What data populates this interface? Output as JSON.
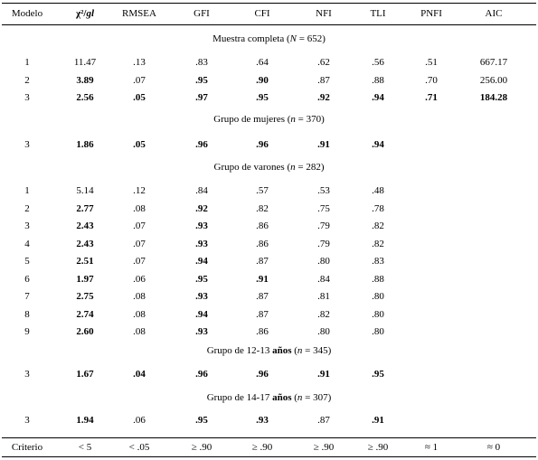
{
  "header": {
    "modelo": "Modelo",
    "chi": "χ²/",
    "gl": "gl",
    "rmsea": "RMSEA",
    "gfi": "GFI",
    "cfi": "CFI",
    "nfi": "NFI",
    "tli": "TLI",
    "pnfi": "PNFI",
    "aic": "AIC"
  },
  "sections": [
    {
      "title_pre": "Muestra completa (",
      "title_var": "N",
      "title_val": " = 652)",
      "title_bold": "",
      "rows": [
        {
          "cells": [
            "1",
            "11.47",
            ".13",
            ".83",
            ".64",
            ".62",
            ".56",
            ".51",
            "667.17"
          ],
          "bold": [
            false,
            false,
            false,
            false,
            false,
            false,
            false,
            false,
            false
          ]
        },
        {
          "cells": [
            "2",
            "3.89",
            ".07",
            ".95",
            ".90",
            ".87",
            ".88",
            ".70",
            "256.00"
          ],
          "bold": [
            false,
            true,
            false,
            true,
            true,
            false,
            false,
            false,
            false
          ]
        },
        {
          "cells": [
            "3",
            "2.56",
            ".05",
            ".97",
            ".95",
            ".92",
            ".94",
            ".71",
            "184.28"
          ],
          "bold": [
            false,
            true,
            true,
            true,
            true,
            true,
            true,
            true,
            true
          ]
        }
      ]
    },
    {
      "title_pre": "Grupo de mujeres (",
      "title_var": "n",
      "title_val": " = 370)",
      "title_bold": "",
      "rows": [
        {
          "cells": [
            "3",
            "1.86",
            ".05",
            ".96",
            ".96",
            ".91",
            ".94",
            "",
            ""
          ],
          "bold": [
            false,
            true,
            true,
            true,
            true,
            true,
            true,
            false,
            false
          ]
        }
      ]
    },
    {
      "title_pre": "Grupo de varones (",
      "title_var": "n",
      "title_val": " = 282)",
      "title_bold": "",
      "rows": [
        {
          "cells": [
            "1",
            "5.14",
            ".12",
            ".84",
            ".57",
            ".53",
            ".48",
            "",
            ""
          ],
          "bold": [
            false,
            false,
            false,
            false,
            false,
            false,
            false,
            false,
            false
          ]
        },
        {
          "cells": [
            "2",
            "2.77",
            ".08",
            ".92",
            ".82",
            ".75",
            ".78",
            "",
            ""
          ],
          "bold": [
            false,
            true,
            false,
            true,
            false,
            false,
            false,
            false,
            false
          ]
        },
        {
          "cells": [
            "3",
            "2.43",
            ".07",
            ".93",
            ".86",
            ".79",
            ".82",
            "",
            ""
          ],
          "bold": [
            false,
            true,
            false,
            true,
            false,
            false,
            false,
            false,
            false
          ]
        },
        {
          "cells": [
            "4",
            "2.43",
            ".07",
            ".93",
            ".86",
            ".79",
            ".82",
            "",
            ""
          ],
          "bold": [
            false,
            true,
            false,
            true,
            false,
            false,
            false,
            false,
            false
          ]
        },
        {
          "cells": [
            "5",
            "2.51",
            ".07",
            ".94",
            ".87",
            ".80",
            ".83",
            "",
            ""
          ],
          "bold": [
            false,
            true,
            false,
            true,
            false,
            false,
            false,
            false,
            false
          ]
        },
        {
          "cells": [
            "6",
            "1.97",
            ".06",
            ".95",
            ".91",
            ".84",
            ".88",
            "",
            ""
          ],
          "bold": [
            false,
            true,
            false,
            true,
            true,
            false,
            false,
            false,
            false
          ]
        },
        {
          "cells": [
            "7",
            "2.75",
            ".08",
            ".93",
            ".87",
            ".81",
            ".80",
            "",
            ""
          ],
          "bold": [
            false,
            true,
            false,
            true,
            false,
            false,
            false,
            false,
            false
          ]
        },
        {
          "cells": [
            "8",
            "2.74",
            ".08",
            ".94",
            ".87",
            ".82",
            ".80",
            "",
            ""
          ],
          "bold": [
            false,
            true,
            false,
            true,
            false,
            false,
            false,
            false,
            false
          ]
        },
        {
          "cells": [
            "9",
            "2.60",
            ".08",
            ".93",
            ".86",
            ".80",
            ".80",
            "",
            ""
          ],
          "bold": [
            false,
            true,
            false,
            true,
            false,
            false,
            false,
            false,
            false
          ]
        }
      ]
    },
    {
      "title_pre": "Grupo de 12-13 ",
      "title_bold": "años",
      "title_mid": " (",
      "title_var": "n",
      "title_val": " = 345)",
      "rows": [
        {
          "cells": [
            "3",
            "1.67",
            ".04",
            ".96",
            ".96",
            ".91",
            ".95",
            "",
            ""
          ],
          "bold": [
            false,
            true,
            true,
            true,
            true,
            true,
            true,
            false,
            false
          ]
        }
      ]
    },
    {
      "title_pre": "Grupo de 14-17 ",
      "title_bold": "años",
      "title_mid": " (",
      "title_var": "n",
      "title_val": " = 307)",
      "rows": [
        {
          "cells": [
            "3",
            "1.94",
            ".06",
            ".95",
            ".93",
            ".87",
            ".91",
            "",
            ""
          ],
          "bold": [
            false,
            true,
            false,
            true,
            true,
            false,
            true,
            false,
            false
          ]
        }
      ]
    }
  ],
  "criterio": [
    "Criterio",
    "< 5",
    "< .05",
    "≥ .90",
    "≥ .90",
    "≥ .90",
    "≥ .90",
    "≈ 1",
    "≈ 0"
  ]
}
